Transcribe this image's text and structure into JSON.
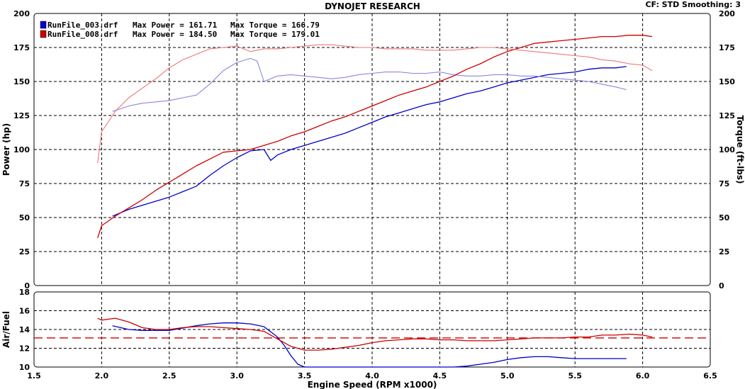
{
  "header": {
    "title": "DYNOJET RESEARCH",
    "settings": "CF: STD  Smoothing: 3"
  },
  "colors": {
    "run1": "#0000cc",
    "run1_light": "#8888dd",
    "run2": "#cc0000",
    "run2_light": "#ee7777",
    "grid": "#000000",
    "afr_ref": "#cc0000"
  },
  "chart_data": [
    {
      "type": "line",
      "title": "DYNOJET RESEARCH",
      "xlabel": "Engine Speed (RPM x1000)",
      "ylabel": "Power (hp)",
      "ylabel_right": "Torque (ft-lbs)",
      "xlim": [
        1.5,
        6.5
      ],
      "ylim": [
        0,
        200
      ],
      "x_ticks": [
        "1.5",
        "2.0",
        "2.5",
        "3.0",
        "3.5",
        "4.0",
        "4.5",
        "5.0",
        "5.5",
        "6.0",
        "6.5"
      ],
      "y_ticks": [
        "0",
        "25",
        "50",
        "75",
        "100",
        "125",
        "150",
        "175",
        "200"
      ],
      "y_ticks_right": [
        "0",
        "25",
        "50",
        "75",
        "100",
        "125",
        "150",
        "175",
        "200"
      ],
      "grid": true,
      "legend": [
        {
          "file": "RunFile_003.drf",
          "power_text": "Max Power = 161.71",
          "torque_text": "Max Torque = 166.79"
        },
        {
          "file": "RunFile_008.drf",
          "power_text": "Max Power = 184.50",
          "torque_text": "Max Torque = 179.01"
        }
      ],
      "series": [
        {
          "name": "RunFile_003.drf Power",
          "x": [
            2.08,
            2.2,
            2.3,
            2.4,
            2.5,
            2.6,
            2.7,
            2.8,
            2.9,
            3.0,
            3.1,
            3.2,
            3.25,
            3.3,
            3.4,
            3.5,
            3.6,
            3.7,
            3.8,
            3.9,
            4.0,
            4.1,
            4.2,
            4.3,
            4.4,
            4.5,
            4.6,
            4.7,
            4.8,
            4.9,
            5.0,
            5.1,
            5.2,
            5.3,
            5.4,
            5.5,
            5.6,
            5.7,
            5.8,
            5.88
          ],
          "values": [
            51,
            56,
            59,
            62,
            65,
            69,
            73,
            81,
            88,
            94,
            99,
            100,
            92,
            96,
            100,
            103,
            106,
            109,
            112,
            116,
            120,
            124,
            127,
            130,
            133,
            135,
            138,
            141,
            143,
            146,
            149,
            151,
            153,
            155,
            156,
            157,
            159,
            160,
            160,
            161
          ]
        },
        {
          "name": "RunFile_003.drf Torque",
          "x": [
            2.08,
            2.2,
            2.3,
            2.4,
            2.5,
            2.6,
            2.7,
            2.8,
            2.9,
            3.0,
            3.1,
            3.15,
            3.2,
            3.3,
            3.4,
            3.5,
            3.6,
            3.7,
            3.8,
            3.9,
            4.0,
            4.1,
            4.2,
            4.3,
            4.4,
            4.5,
            4.6,
            4.7,
            4.8,
            4.9,
            5.0,
            5.1,
            5.2,
            5.3,
            5.4,
            5.5,
            5.6,
            5.7,
            5.8,
            5.88
          ],
          "values": [
            128,
            132,
            134,
            135,
            136,
            138,
            140,
            148,
            158,
            164,
            167,
            165,
            150,
            154,
            155,
            154,
            153,
            152,
            153,
            155,
            156,
            157,
            157,
            156,
            156,
            157,
            155,
            154,
            154,
            155,
            155,
            154,
            154,
            153,
            152,
            151,
            150,
            148,
            146,
            144
          ]
        },
        {
          "name": "RunFile_008.drf Power",
          "x": [
            1.97,
            2.0,
            2.1,
            2.2,
            2.3,
            2.4,
            2.5,
            2.6,
            2.7,
            2.8,
            2.9,
            3.0,
            3.1,
            3.2,
            3.3,
            3.4,
            3.5,
            3.6,
            3.7,
            3.8,
            3.9,
            4.0,
            4.1,
            4.2,
            4.3,
            4.4,
            4.5,
            4.6,
            4.7,
            4.8,
            4.9,
            5.0,
            5.1,
            5.2,
            5.3,
            5.4,
            5.5,
            5.6,
            5.7,
            5.8,
            5.9,
            6.0,
            6.07
          ],
          "values": [
            35,
            44,
            51,
            57,
            63,
            70,
            76,
            82,
            88,
            93,
            98,
            99,
            100,
            103,
            106,
            110,
            113,
            117,
            121,
            124,
            128,
            132,
            136,
            140,
            143,
            146,
            150,
            154,
            159,
            163,
            168,
            172,
            175,
            178,
            179,
            180,
            181,
            182,
            183,
            183,
            184,
            184,
            183
          ]
        },
        {
          "name": "RunFile_008.drf Torque",
          "x": [
            1.97,
            2.0,
            2.1,
            2.2,
            2.3,
            2.4,
            2.5,
            2.6,
            2.7,
            2.8,
            2.9,
            3.0,
            3.1,
            3.2,
            3.3,
            3.4,
            3.5,
            3.6,
            3.7,
            3.8,
            3.9,
            4.0,
            4.1,
            4.2,
            4.3,
            4.4,
            4.5,
            4.6,
            4.7,
            4.8,
            4.9,
            5.0,
            5.1,
            5.2,
            5.3,
            5.4,
            5.5,
            5.6,
            5.7,
            5.8,
            5.9,
            6.0,
            6.07
          ],
          "values": [
            90,
            113,
            128,
            138,
            145,
            152,
            160,
            166,
            170,
            174,
            175,
            176,
            172,
            174,
            174,
            175,
            176,
            177,
            177,
            176,
            175,
            175,
            174,
            174,
            174,
            173,
            173,
            173,
            174,
            175,
            175,
            174,
            173,
            172,
            171,
            170,
            169,
            168,
            166,
            165,
            163,
            162,
            158
          ]
        }
      ]
    },
    {
      "type": "line",
      "xlabel": "Engine Speed (RPM x1000)",
      "ylabel": "Air/Fuel",
      "xlim": [
        1.5,
        6.5
      ],
      "ylim": [
        10,
        18
      ],
      "x_ticks": [
        "1.5",
        "2.0",
        "2.5",
        "3.0",
        "3.5",
        "4.0",
        "4.5",
        "5.0",
        "5.5",
        "6.0",
        "6.5"
      ],
      "y_ticks": [
        "10",
        "12",
        "14",
        "16",
        "18"
      ],
      "grid": true,
      "reference_line": 13.1,
      "series": [
        {
          "name": "RunFile_003.drf Air/Fuel",
          "x": [
            2.08,
            2.2,
            2.3,
            2.5,
            2.7,
            2.8,
            2.9,
            3.0,
            3.1,
            3.2,
            3.3,
            3.35,
            3.4,
            3.45,
            3.5,
            3.6,
            3.8,
            4.0,
            4.2,
            4.4,
            4.6,
            4.7,
            4.8,
            4.9,
            5.0,
            5.1,
            5.2,
            5.3,
            5.4,
            5.5,
            5.6,
            5.7,
            5.8,
            5.88
          ],
          "values": [
            14.4,
            14.0,
            13.9,
            13.9,
            14.4,
            14.6,
            14.7,
            14.7,
            14.6,
            14.3,
            13.2,
            12.3,
            11.2,
            10.3,
            10.0,
            10.0,
            10.0,
            10.0,
            10.0,
            10.0,
            10.0,
            10.1,
            10.3,
            10.5,
            10.8,
            11.0,
            11.1,
            11.1,
            11.0,
            10.9,
            10.9,
            10.9,
            10.9,
            10.9
          ]
        },
        {
          "name": "RunFile_008.drf Air/Fuel",
          "x": [
            1.97,
            2.0,
            2.1,
            2.2,
            2.3,
            2.4,
            2.5,
            2.6,
            2.7,
            2.8,
            2.9,
            3.0,
            3.1,
            3.2,
            3.3,
            3.4,
            3.5,
            3.6,
            3.7,
            3.8,
            3.9,
            4.0,
            4.1,
            4.2,
            4.3,
            4.4,
            4.5,
            4.6,
            4.7,
            4.8,
            4.9,
            5.0,
            5.1,
            5.2,
            5.3,
            5.4,
            5.5,
            5.6,
            5.7,
            5.8,
            5.9,
            6.0,
            6.07
          ],
          "values": [
            15.2,
            15.0,
            15.2,
            14.8,
            14.2,
            14.0,
            14.0,
            14.2,
            14.3,
            14.3,
            14.2,
            14.1,
            14.0,
            13.8,
            13.0,
            12.2,
            11.8,
            11.8,
            11.9,
            12.1,
            12.3,
            12.6,
            12.8,
            12.9,
            13.0,
            13.0,
            12.9,
            12.9,
            12.8,
            12.8,
            12.8,
            12.9,
            13.0,
            13.1,
            13.1,
            13.1,
            13.2,
            13.2,
            13.4,
            13.4,
            13.5,
            13.4,
            13.2
          ]
        }
      ]
    }
  ]
}
